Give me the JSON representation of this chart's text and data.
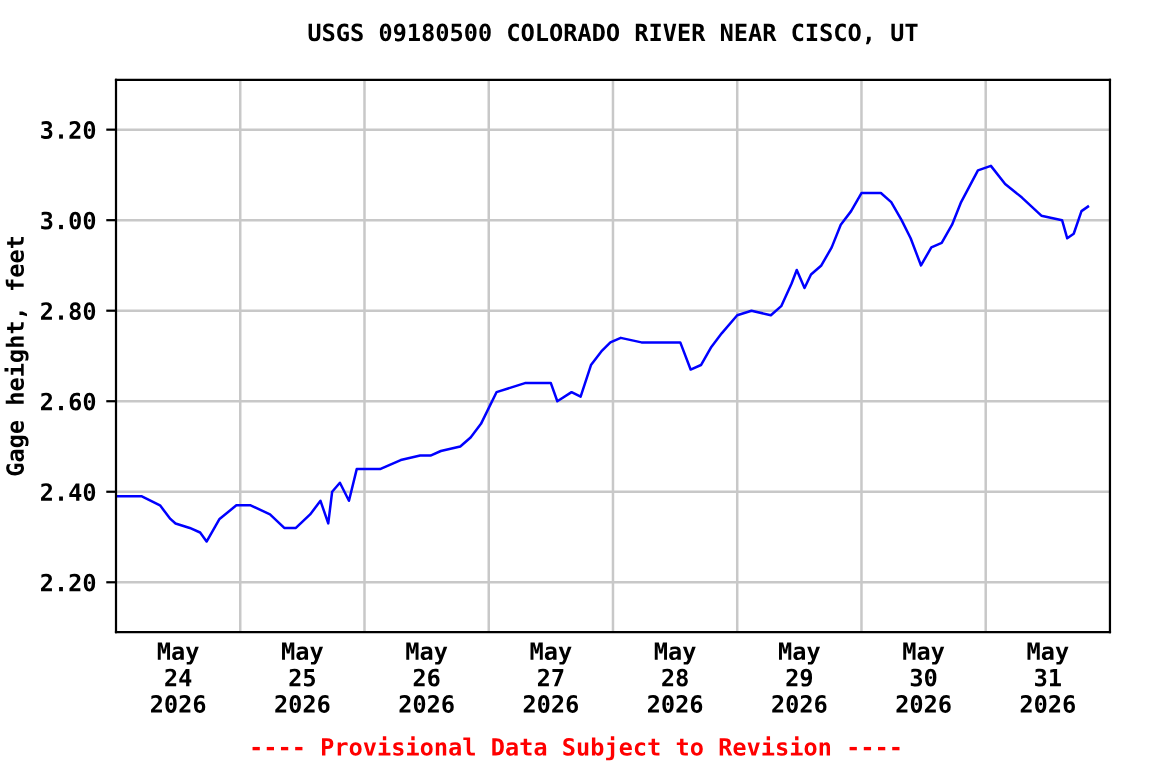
{
  "chart_data": {
    "type": "line",
    "title": "USGS 09180500 COLORADO RIVER NEAR CISCO, UT",
    "ylabel": "Gage height, feet",
    "annotations": [
      "---- Provisional Data Subject to Revision ----"
    ],
    "x": [
      "2026-05-24T00:00",
      "2026-05-24T05:00",
      "2026-05-24T08:30",
      "2026-05-24T10:30",
      "2026-05-24T11:30",
      "2026-05-24T14:15",
      "2026-05-24T16:15",
      "2026-05-24T17:30",
      "2026-05-24T20:00",
      "2026-05-24T23:15",
      "2026-05-25T02:00",
      "2026-05-25T05:45",
      "2026-05-25T08:30",
      "2026-05-25T10:45",
      "2026-05-25T13:30",
      "2026-05-25T15:30",
      "2026-05-25T17:00",
      "2026-05-25T17:45",
      "2026-05-25T19:15",
      "2026-05-25T21:00",
      "2026-05-25T22:30",
      "2026-05-26T03:00",
      "2026-05-26T07:00",
      "2026-05-26T10:45",
      "2026-05-26T12:45",
      "2026-05-26T14:45",
      "2026-05-26T18:30",
      "2026-05-26T20:30",
      "2026-05-26T22:30",
      "2026-05-27T01:30",
      "2026-05-27T04:15",
      "2026-05-27T07:00",
      "2026-05-27T12:00",
      "2026-05-27T13:15",
      "2026-05-27T16:00",
      "2026-05-27T17:45",
      "2026-05-27T19:45",
      "2026-05-27T21:45",
      "2026-05-27T23:30",
      "2026-05-28T01:30",
      "2026-05-28T05:30",
      "2026-05-28T13:00",
      "2026-05-28T15:00",
      "2026-05-28T17:00",
      "2026-05-28T19:00",
      "2026-05-28T21:00",
      "2026-05-29T00:00",
      "2026-05-29T02:45",
      "2026-05-29T06:30",
      "2026-05-29T08:30",
      "2026-05-29T10:30",
      "2026-05-29T11:30",
      "2026-05-29T13:00",
      "2026-05-29T14:15",
      "2026-05-29T16:15",
      "2026-05-29T18:15",
      "2026-05-29T20:00",
      "2026-05-29T22:00",
      "2026-05-30T00:00",
      "2026-05-30T03:45",
      "2026-05-30T05:45",
      "2026-05-30T07:45",
      "2026-05-30T09:30",
      "2026-05-30T11:30",
      "2026-05-30T13:30",
      "2026-05-30T15:30",
      "2026-05-30T17:30",
      "2026-05-30T19:15",
      "2026-05-30T22:30",
      "2026-05-31T01:00",
      "2026-05-31T03:45",
      "2026-05-31T07:00",
      "2026-05-31T10:45",
      "2026-05-31T14:45",
      "2026-05-31T15:45",
      "2026-05-31T17:00",
      "2026-05-31T18:30",
      "2026-05-31T19:45"
    ],
    "series": [
      {
        "color": "#0000ff",
        "values": [
          2.39,
          2.39,
          2.37,
          2.34,
          2.33,
          2.32,
          2.31,
          2.29,
          2.34,
          2.37,
          2.37,
          2.35,
          2.32,
          2.32,
          2.35,
          2.38,
          2.33,
          2.4,
          2.42,
          2.38,
          2.45,
          2.45,
          2.47,
          2.48,
          2.48,
          2.49,
          2.5,
          2.52,
          2.55,
          2.62,
          2.63,
          2.64,
          2.64,
          2.6,
          2.62,
          2.61,
          2.68,
          2.71,
          2.73,
          2.74,
          2.73,
          2.73,
          2.67,
          2.68,
          2.72,
          2.75,
          2.79,
          2.8,
          2.79,
          2.81,
          2.86,
          2.89,
          2.85,
          2.88,
          2.9,
          2.94,
          2.99,
          3.02,
          3.06,
          3.06,
          3.04,
          3.0,
          2.96,
          2.9,
          2.94,
          2.95,
          2.99,
          3.04,
          3.11,
          3.12,
          3.08,
          3.05,
          3.01,
          3.0,
          2.96,
          2.97,
          3.02,
          3.03
        ]
      }
    ],
    "xlim": [
      "2026-05-24T00:00",
      "2026-06-01T00:00"
    ],
    "xticks": [
      {
        "value": "2026-05-24T12:00",
        "label": "May\n24\n2026"
      },
      {
        "value": "2026-05-25T12:00",
        "label": "May\n25\n2026"
      },
      {
        "value": "2026-05-26T12:00",
        "label": "May\n26\n2026"
      },
      {
        "value": "2026-05-27T12:00",
        "label": "May\n27\n2026"
      },
      {
        "value": "2026-05-28T12:00",
        "label": "May\n28\n2026"
      },
      {
        "value": "2026-05-29T12:00",
        "label": "May\n29\n2026"
      },
      {
        "value": "2026-05-30T12:00",
        "label": "May\n30\n2026"
      },
      {
        "value": "2026-05-31T12:00",
        "label": "May\n31\n2026"
      },
      {
        "value": "2026-05-25T00:00",
        "label": null
      },
      {
        "value": "2026-05-26T00:00",
        "label": null
      },
      {
        "value": "2026-05-27T00:00",
        "label": null
      },
      {
        "value": "2026-05-28T00:00",
        "label": null
      },
      {
        "value": "2026-05-29T00:00",
        "label": null
      },
      {
        "value": "2026-05-30T00:00",
        "label": null
      },
      {
        "value": "2026-05-31T00:00",
        "label": null
      }
    ],
    "ylim": [
      2.09,
      3.31
    ],
    "yticks": [
      {
        "value": 2.2,
        "label": "2.20"
      },
      {
        "value": 2.4,
        "label": "2.40"
      },
      {
        "value": 2.6,
        "label": "2.60"
      },
      {
        "value": 2.8,
        "label": "2.80"
      },
      {
        "value": 3.0,
        "label": "3.00"
      },
      {
        "value": 3.2,
        "label": "3.20"
      }
    ],
    "grid": true,
    "line_style": "solid",
    "marker": "none"
  }
}
